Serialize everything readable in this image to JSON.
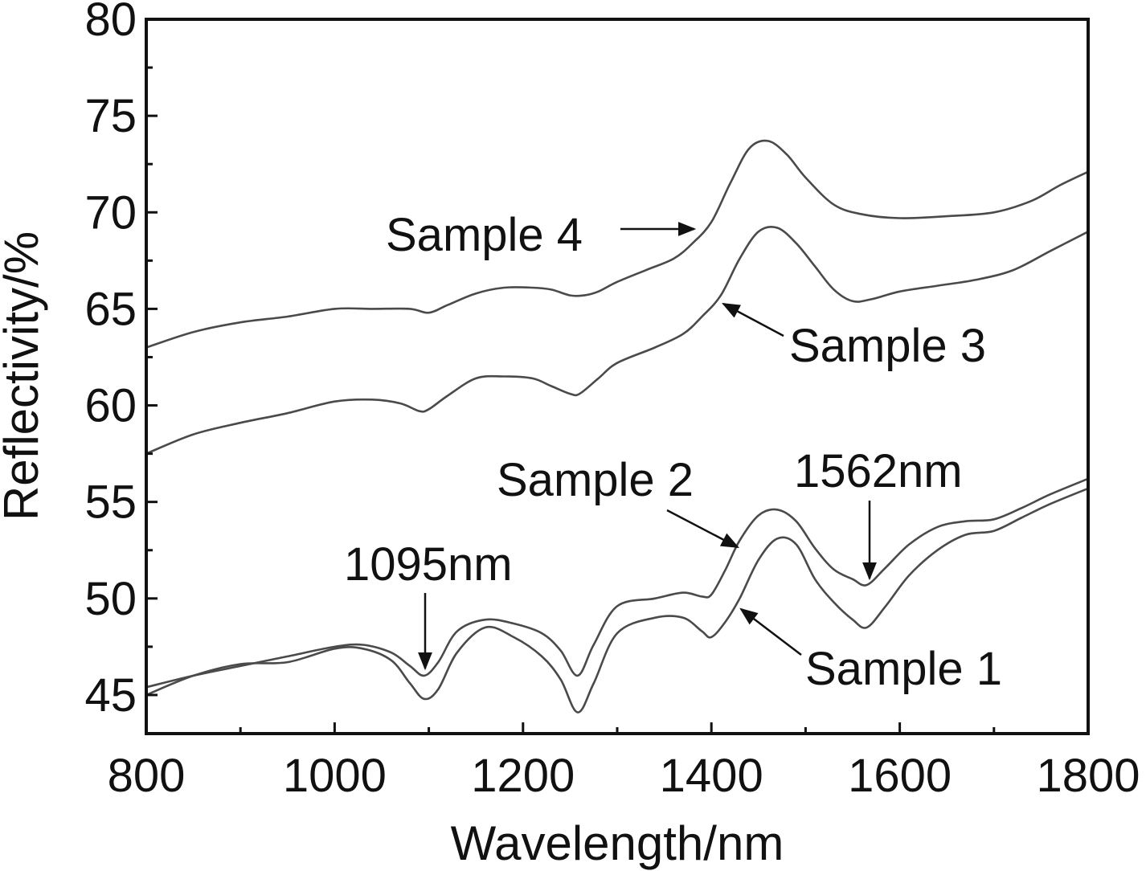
{
  "chart_data": {
    "type": "line",
    "title": "",
    "xlabel": "Wavelength/nm",
    "ylabel": "Reflectivity/%",
    "xlim": [
      800,
      1800
    ],
    "ylim": [
      43,
      80
    ],
    "xticks": [
      800,
      1000,
      1200,
      1400,
      1600,
      1800
    ],
    "yticks": [
      45,
      50,
      55,
      60,
      65,
      70,
      75,
      80
    ],
    "grid": false,
    "legend": "none",
    "series": [
      {
        "name": "Sample 1",
        "x": [
          800,
          850,
          900,
          950,
          1000,
          1030,
          1060,
          1080,
          1095,
          1110,
          1130,
          1160,
          1190,
          1220,
          1240,
          1258,
          1275,
          1300,
          1340,
          1370,
          1390,
          1400,
          1415,
          1430,
          1450,
          1470,
          1490,
          1510,
          1530,
          1550,
          1565,
          1585,
          1610,
          1640,
          1670,
          1700,
          1730,
          1760,
          1800
        ],
        "y": [
          45.0,
          46.0,
          46.6,
          46.7,
          47.4,
          47.4,
          46.8,
          45.6,
          44.8,
          45.3,
          47.2,
          48.5,
          48.0,
          47.0,
          45.8,
          44.1,
          45.6,
          48.2,
          49.0,
          49.0,
          48.3,
          48.0,
          48.8,
          50.0,
          52.0,
          53.1,
          52.8,
          51.0,
          49.8,
          48.9,
          48.5,
          49.6,
          51.2,
          52.5,
          53.3,
          53.5,
          54.2,
          54.9,
          55.7
        ]
      },
      {
        "name": "Sample 2",
        "x": [
          800,
          850,
          900,
          950,
          1000,
          1030,
          1060,
          1080,
          1095,
          1110,
          1130,
          1160,
          1190,
          1220,
          1240,
          1258,
          1275,
          1300,
          1340,
          1370,
          1390,
          1400,
          1415,
          1430,
          1450,
          1470,
          1490,
          1510,
          1530,
          1550,
          1565,
          1585,
          1610,
          1640,
          1670,
          1700,
          1730,
          1760,
          1800
        ],
        "y": [
          45.4,
          46.0,
          46.5,
          47.0,
          47.5,
          47.6,
          47.2,
          46.5,
          46.0,
          46.7,
          48.3,
          48.9,
          48.7,
          48.2,
          47.3,
          46.0,
          47.6,
          49.6,
          50.0,
          50.3,
          50.1,
          50.2,
          51.5,
          53.0,
          54.3,
          54.6,
          54.0,
          52.6,
          51.5,
          51.0,
          50.7,
          51.6,
          52.8,
          53.7,
          54.0,
          54.1,
          54.7,
          55.4,
          56.2
        ]
      },
      {
        "name": "Sample 3",
        "x": [
          800,
          850,
          900,
          950,
          1000,
          1040,
          1070,
          1090,
          1100,
          1120,
          1150,
          1180,
          1210,
          1230,
          1250,
          1260,
          1280,
          1300,
          1340,
          1370,
          1390,
          1410,
          1430,
          1450,
          1470,
          1490,
          1510,
          1530,
          1550,
          1570,
          1600,
          1640,
          1680,
          1720,
          1760,
          1800
        ],
        "y": [
          57.5,
          58.5,
          59.1,
          59.6,
          60.2,
          60.3,
          60.1,
          59.7,
          59.8,
          60.5,
          61.4,
          61.5,
          61.4,
          61.0,
          60.6,
          60.6,
          61.4,
          62.2,
          63.0,
          63.7,
          64.6,
          65.7,
          67.6,
          69.0,
          69.2,
          68.4,
          67.2,
          66.0,
          65.4,
          65.5,
          65.9,
          66.2,
          66.5,
          67.0,
          68.0,
          69.0
        ]
      },
      {
        "name": "Sample 4",
        "x": [
          800,
          850,
          900,
          950,
          1000,
          1040,
          1080,
          1100,
          1120,
          1150,
          1180,
          1210,
          1230,
          1250,
          1265,
          1280,
          1300,
          1330,
          1360,
          1380,
          1400,
          1420,
          1440,
          1460,
          1480,
          1500,
          1530,
          1560,
          1600,
          1650,
          1700,
          1740,
          1770,
          1800
        ],
        "y": [
          63.0,
          63.8,
          64.3,
          64.6,
          65.0,
          65.0,
          65.0,
          64.8,
          65.2,
          65.8,
          66.1,
          66.1,
          66.0,
          65.7,
          65.7,
          65.9,
          66.4,
          67.0,
          67.6,
          68.4,
          69.5,
          71.5,
          73.3,
          73.7,
          73.0,
          71.8,
          70.4,
          69.9,
          69.7,
          69.8,
          70.0,
          70.6,
          71.4,
          72.1
        ]
      }
    ],
    "annotations": [
      {
        "text": "Sample 4",
        "target_series": "Sample 4",
        "x": 1390,
        "y": 69.1
      },
      {
        "text": "Sample 3",
        "target_series": "Sample 3",
        "x": 1415,
        "y": 65.5
      },
      {
        "text": "Sample 2",
        "target_series": "Sample 2",
        "x": 1430,
        "y": 52.8
      },
      {
        "text": "Sample 1",
        "target_series": "Sample 1",
        "x": 1435,
        "y": 49.8
      },
      {
        "text": "1095nm",
        "target_series": "Sample 2",
        "x": 1095,
        "y": 46.0
      },
      {
        "text": "1562nm",
        "target_series": "Sample 2",
        "x": 1565,
        "y": 50.7
      }
    ]
  }
}
